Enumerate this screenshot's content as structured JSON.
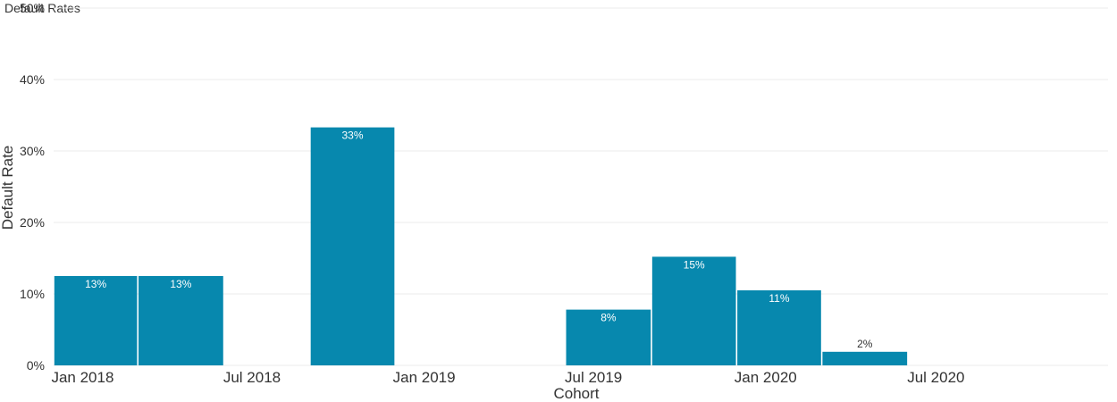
{
  "chart_data": {
    "type": "bar",
    "title": "Default Rates",
    "xlabel": "Cohort",
    "ylabel": "Default Rate",
    "ylim": [
      0,
      0.5
    ],
    "y_ticks": [
      {
        "value": 0,
        "label": "0%"
      },
      {
        "value": 0.1,
        "label": "10%"
      },
      {
        "value": 0.2,
        "label": "20%"
      },
      {
        "value": 0.3,
        "label": "30%"
      },
      {
        "value": 0.4,
        "label": "40%"
      },
      {
        "value": 0.5,
        "label": "50%"
      }
    ],
    "x_range": [
      "2017-12-01",
      "2021-01-01"
    ],
    "x_ticks": [
      {
        "date": "2018-01-01",
        "label": "Jan 2018"
      },
      {
        "date": "2018-07-01",
        "label": "Jul 2018"
      },
      {
        "date": "2019-01-01",
        "label": "Jan 2019"
      },
      {
        "date": "2019-07-01",
        "label": "Jul 2019"
      },
      {
        "date": "2020-01-01",
        "label": "Jan 2020"
      },
      {
        "date": "2020-07-01",
        "label": "Jul 2020"
      }
    ],
    "bar_period": "quarter",
    "bars": [
      {
        "period_start": "2017-12-01",
        "value": 0.125,
        "label": "13%"
      },
      {
        "period_start": "2018-03-01",
        "value": 0.125,
        "label": "13%"
      },
      {
        "period_start": "2018-09-01",
        "value": 0.333,
        "label": "33%"
      },
      {
        "period_start": "2019-06-01",
        "value": 0.078,
        "label": "8%"
      },
      {
        "period_start": "2019-09-01",
        "value": 0.152,
        "label": "15%"
      },
      {
        "period_start": "2019-12-01",
        "value": 0.105,
        "label": "11%"
      },
      {
        "period_start": "2020-03-01",
        "value": 0.019,
        "label": "2%"
      }
    ],
    "bar_color": "#0788ae",
    "label_inside_color": "#ffffff",
    "label_outside_color": "#333333",
    "grid": true,
    "legend": "none"
  }
}
